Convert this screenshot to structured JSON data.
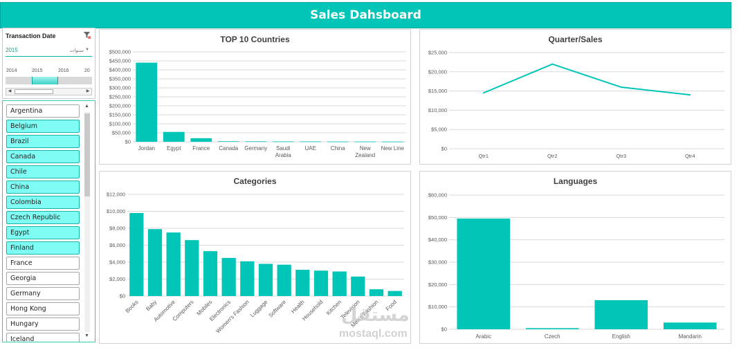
{
  "banner": {
    "title": "Sales Dahsboard"
  },
  "timeline": {
    "title": "Transaction  Date",
    "selected": "2015",
    "level": "سنوات",
    "ticks": [
      "2014",
      "2015",
      "2016",
      "20"
    ]
  },
  "slicer": {
    "items": [
      {
        "label": "Argentina",
        "selected": false
      },
      {
        "label": "Belgium",
        "selected": true
      },
      {
        "label": "Brazil",
        "selected": true
      },
      {
        "label": "Canada",
        "selected": true
      },
      {
        "label": "Chile",
        "selected": true
      },
      {
        "label": "China",
        "selected": true
      },
      {
        "label": "Colombia",
        "selected": true
      },
      {
        "label": "Czech Republic",
        "selected": true
      },
      {
        "label": "Egypt",
        "selected": true
      },
      {
        "label": "Finland",
        "selected": true
      },
      {
        "label": "France",
        "selected": false
      },
      {
        "label": "Georgia",
        "selected": false
      },
      {
        "label": "Germany",
        "selected": false
      },
      {
        "label": "Hong Kong",
        "selected": false
      },
      {
        "label": "Hungary",
        "selected": false
      },
      {
        "label": "Iceland",
        "selected": false
      }
    ]
  },
  "colors": {
    "accent": "#00c5b7",
    "grid": "#d9d9d9",
    "axis_text": "#595959"
  },
  "watermark": {
    "arabic": "مستقل",
    "latin": "mostaql.com"
  },
  "chart_data": [
    {
      "type": "bar",
      "title": "TOP 10 Countries",
      "categories": [
        "Jordan",
        "Egypt",
        "France",
        "Canada",
        "Germany",
        "Saudi Arabia",
        "UAE",
        "China",
        "New Zealand",
        "New Line"
      ],
      "category_lines": [
        [
          "Jordan"
        ],
        [
          "Egypt"
        ],
        [
          "France"
        ],
        [
          "Canada"
        ],
        [
          "Germany"
        ],
        [
          "Saudi",
          "Arabia"
        ],
        [
          "UAE"
        ],
        [
          "China"
        ],
        [
          "New",
          "Zealand"
        ],
        [
          "New Line"
        ]
      ],
      "values": [
        440000,
        55000,
        20000,
        3000,
        2500,
        2000,
        2000,
        1500,
        1500,
        1000
      ],
      "ylim": [
        0,
        500000
      ],
      "ystep": 50000,
      "ytick_labels": [
        "$0",
        "$50,000",
        "$100,000",
        "$150,000",
        "$200,000",
        "$250,000",
        "$300,000",
        "$350,000",
        "$400,000",
        "$450,000",
        "$500,000"
      ],
      "grid": true
    },
    {
      "type": "line",
      "title": "Quarter/Sales",
      "categories": [
        "Qtr1",
        "Qtr2",
        "Qtr3",
        "Qtr4"
      ],
      "values": [
        14500,
        22000,
        16000,
        14000
      ],
      "ylim": [
        0,
        25000
      ],
      "ystep": 5000,
      "ytick_labels": [
        "$0",
        "$5,000",
        "$10,000",
        "$15,000",
        "$20,000",
        "$25,000"
      ],
      "grid": true
    },
    {
      "type": "bar",
      "title": "Categories",
      "categories": [
        "Books",
        "Baby",
        "Automotive",
        "Computers",
        "Mobiles",
        "Electronics",
        "Women's Fashion",
        "Luggage",
        "Software",
        "Health",
        "Household",
        "Kitchen",
        "Television",
        "Men's Fashion",
        "Food"
      ],
      "values": [
        9800,
        7900,
        7500,
        6600,
        5300,
        4500,
        4100,
        3800,
        3700,
        3100,
        3000,
        2900,
        2300,
        800,
        600
      ],
      "ylim": [
        0,
        12000
      ],
      "ystep": 2000,
      "ytick_labels": [
        "$0",
        "$2,000",
        "$4,000",
        "$6,000",
        "$8,000",
        "$10,000",
        "$12,000"
      ],
      "grid": true
    },
    {
      "type": "bar",
      "title": "Languages",
      "categories": [
        "Arabic",
        "Czech",
        "English",
        "Mandarin"
      ],
      "values": [
        49500,
        500,
        13000,
        3000
      ],
      "ylim": [
        0,
        60000
      ],
      "ystep": 10000,
      "ytick_labels": [
        "$0",
        "$10,000",
        "$20,000",
        "$30,000",
        "$40,000",
        "$50,000",
        "$60,000"
      ],
      "grid": true
    }
  ]
}
